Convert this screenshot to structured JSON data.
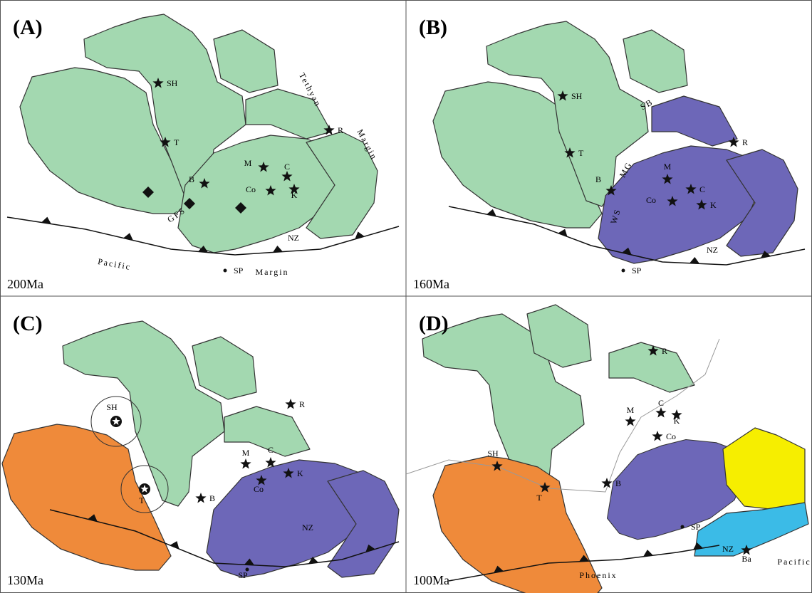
{
  "panels": [
    {
      "label": "(A)",
      "age": "200Ma",
      "sites": [
        "SH",
        "T",
        "B",
        "M",
        "C",
        "Co",
        "K",
        "R",
        "NZ",
        "SP"
      ],
      "notes": [
        "Tethyan",
        "Margin",
        "GFS",
        "Pacific",
        "Margin"
      ]
    },
    {
      "label": "(B)",
      "age": "160Ma",
      "sites": [
        "SH",
        "T",
        "B",
        "M",
        "C",
        "Co",
        "K",
        "R",
        "NZ",
        "SP"
      ],
      "notes": [
        "SB",
        "MG",
        "WS"
      ]
    },
    {
      "label": "(C)",
      "age": "130Ma",
      "sites": [
        "SH",
        "T",
        "B",
        "M",
        "C",
        "Co",
        "K",
        "R",
        "NZ",
        "SP"
      ]
    },
    {
      "label": "(D)",
      "age": "100Ma",
      "sites": [
        "SH",
        "T",
        "B",
        "M",
        "C",
        "K",
        "Co",
        "R",
        "SP",
        "NZ",
        "Ba"
      ],
      "notes": [
        "Phoenix",
        "Pacific"
      ]
    }
  ]
}
